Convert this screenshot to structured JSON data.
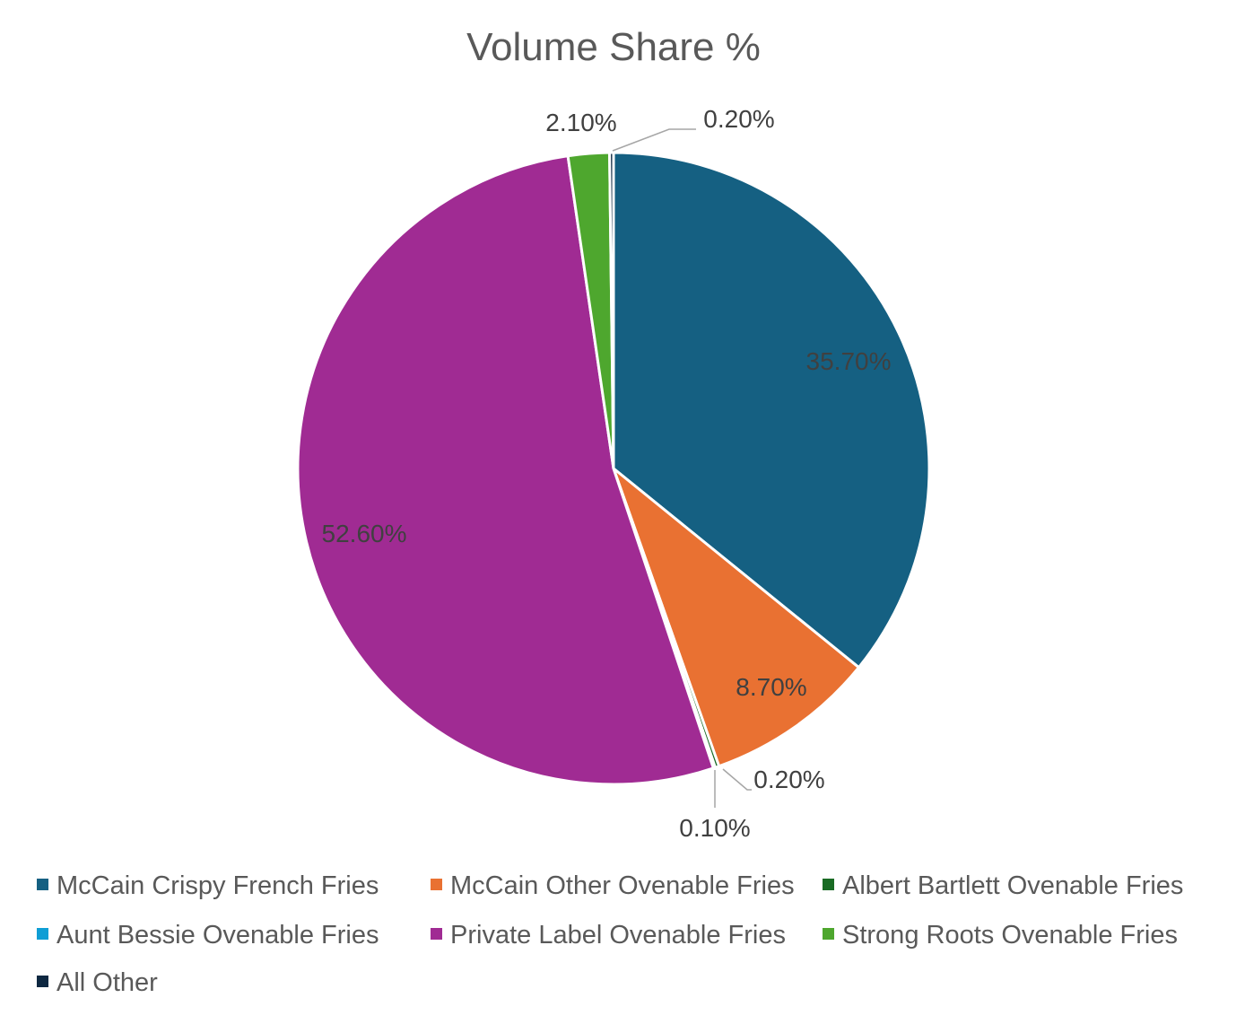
{
  "chart_data": {
    "type": "pie",
    "title": "Volume Share %",
    "legend_position": "bottom",
    "slices": [
      {
        "name": "McCain Crispy French Fries",
        "value": 35.7,
        "label": "35.70%",
        "color": "#156082"
      },
      {
        "name": "McCain Other Ovenable Fries",
        "value": 8.7,
        "label": "8.70%",
        "color": "#E97132"
      },
      {
        "name": "Albert Bartlett Ovenable Fries",
        "value": 0.2,
        "label": "0.20%",
        "color": "#196B24"
      },
      {
        "name": "Aunt Bessie Ovenable Fries",
        "value": 0.1,
        "label": "0.10%",
        "color": "#0F9ED5"
      },
      {
        "name": "Private Label Ovenable Fries",
        "value": 52.6,
        "label": "52.60%",
        "color": "#A02B93"
      },
      {
        "name": "Strong Roots Ovenable Fries",
        "value": 2.1,
        "label": "2.10%",
        "color": "#4EA72E"
      },
      {
        "name": "All Other",
        "value": 0.2,
        "label": "0.20%",
        "color": "#0E2841"
      }
    ]
  }
}
